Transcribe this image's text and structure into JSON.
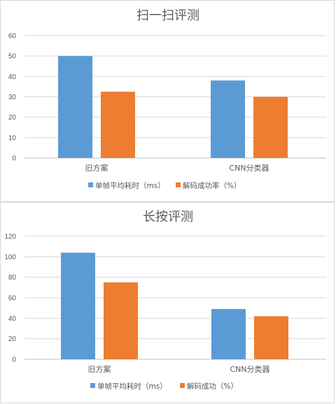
{
  "chart_data": [
    {
      "type": "bar",
      "title": "扫一扫评测",
      "categories": [
        "旧方案",
        "CNN分类器"
      ],
      "series": [
        {
          "name": "单帧平均耗时（ms）",
          "color": "#5b9bd5",
          "values": [
            50,
            38
          ]
        },
        {
          "name": "解码成功率（%）",
          "color": "#ed7d31",
          "values": [
            32.5,
            30
          ]
        }
      ],
      "xlabel": "",
      "ylabel": "",
      "ylim": [
        0,
        60
      ],
      "yticks": [
        0,
        10,
        20,
        30,
        40,
        50,
        60
      ],
      "grid": true,
      "legend": "bottom"
    },
    {
      "type": "bar",
      "title": "长按评测",
      "categories": [
        "旧方案",
        "CNN分类器"
      ],
      "series": [
        {
          "name": "单帧平均耗时（ms）",
          "color": "#5b9bd5",
          "values": [
            104,
            49
          ]
        },
        {
          "name": "解码成功（%）",
          "color": "#ed7d31",
          "values": [
            75,
            42
          ]
        }
      ],
      "xlabel": "",
      "ylabel": "",
      "ylim": [
        0,
        120
      ],
      "yticks": [
        0,
        20,
        40,
        60,
        80,
        100,
        120
      ],
      "grid": true,
      "legend": "bottom"
    }
  ]
}
